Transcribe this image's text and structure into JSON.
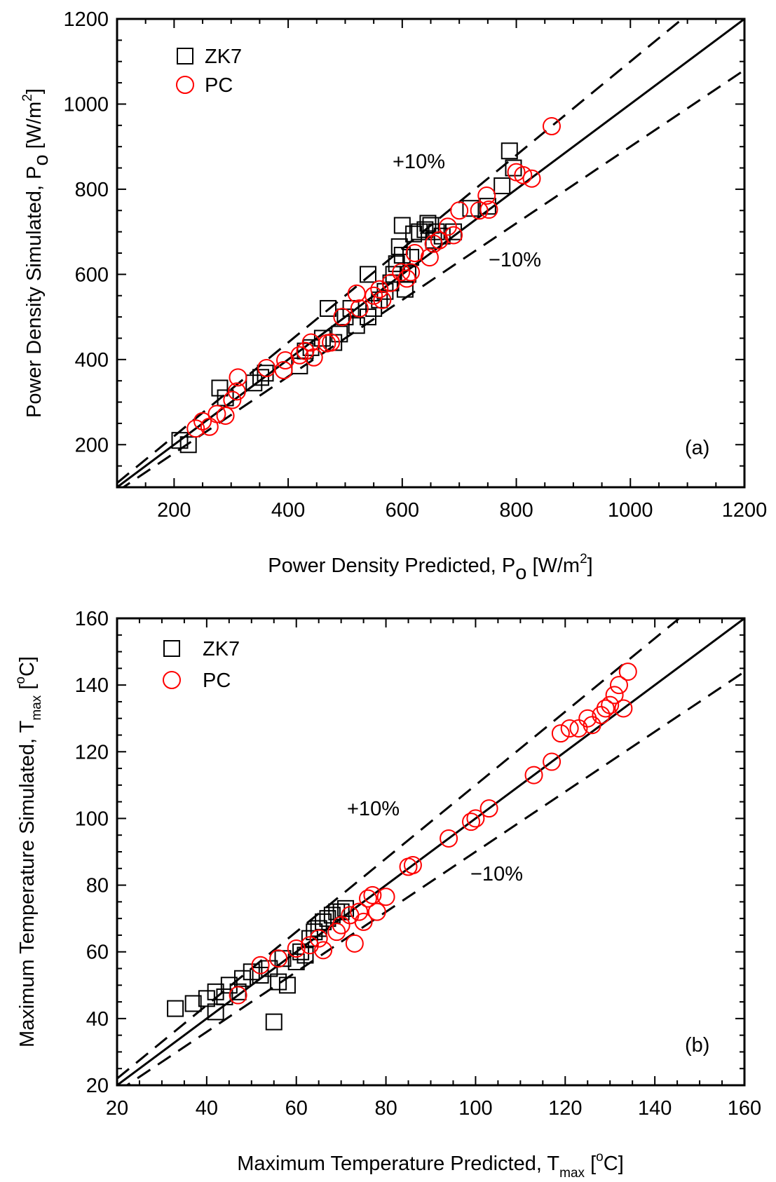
{
  "colors": {
    "zk7": "#000000",
    "pc": "#ff0000",
    "lines": "#000000"
  },
  "chart_data": [
    {
      "type": "scatter",
      "panel_label": "(a)",
      "xlabel": {
        "main": "Power Density Predicted, P",
        "sub": "o",
        "unit_pre": " [W/m",
        "sup": "2",
        "unit_post": "]"
      },
      "ylabel": {
        "main": "Power Density Simulated, P",
        "sub": "o",
        "unit_pre": " [W/m",
        "sup": "2",
        "unit_post": "]"
      },
      "xlim": [
        100,
        1200
      ],
      "ylim": [
        100,
        1200
      ],
      "xticks": [
        200,
        400,
        600,
        800,
        1000,
        1200
      ],
      "yticks": [
        200,
        400,
        600,
        800,
        1000,
        1200
      ],
      "minor_step": 50,
      "grid": false,
      "legend_position": "top-left",
      "annotations": {
        "plus": "+10%",
        "minus": "−10%"
      },
      "reference_lines": [
        {
          "name": "1:1",
          "slope": 1.0,
          "style": "solid"
        },
        {
          "name": "+10%",
          "slope": 1.1,
          "style": "dashed"
        },
        {
          "name": "-10%",
          "slope": 0.9,
          "style": "dashed"
        }
      ],
      "series": [
        {
          "name": "ZK7",
          "marker": "square",
          "points": [
            [
              210,
              210
            ],
            [
              225,
              200
            ],
            [
              280,
              333
            ],
            [
              290,
              310
            ],
            [
              340,
              345
            ],
            [
              352,
              358
            ],
            [
              360,
              368
            ],
            [
              420,
              385
            ],
            [
              430,
              420
            ],
            [
              440,
              428
            ],
            [
              460,
              450
            ],
            [
              470,
              520
            ],
            [
              480,
              440
            ],
            [
              490,
              460
            ],
            [
              500,
              500
            ],
            [
              510,
              520
            ],
            [
              520,
              480
            ],
            [
              540,
              600
            ],
            [
              540,
              500
            ],
            [
              550,
              520
            ],
            [
              560,
              540
            ],
            [
              570,
              560
            ],
            [
              580,
              580
            ],
            [
              585,
              600
            ],
            [
              590,
              625
            ],
            [
              595,
              665
            ],
            [
              600,
              645
            ],
            [
              600,
              715
            ],
            [
              605,
              565
            ],
            [
              610,
              600
            ],
            [
              615,
              640
            ],
            [
              620,
              695
            ],
            [
              630,
              700
            ],
            [
              640,
              705
            ],
            [
              645,
              720
            ],
            [
              650,
              715
            ],
            [
              655,
              680
            ],
            [
              660,
              700
            ],
            [
              670,
              690
            ],
            [
              690,
              700
            ],
            [
              720,
              755
            ],
            [
              750,
              760
            ],
            [
              775,
              808
            ],
            [
              788,
              890
            ],
            [
              795,
              850
            ]
          ]
        },
        {
          "name": "PC",
          "marker": "circle",
          "points": [
            [
              238,
              238
            ],
            [
              250,
              255
            ],
            [
              262,
              242
            ],
            [
              275,
              272
            ],
            [
              290,
              268
            ],
            [
              302,
              305
            ],
            [
              310,
              325
            ],
            [
              312,
              358
            ],
            [
              362,
              380
            ],
            [
              392,
              375
            ],
            [
              395,
              398
            ],
            [
              420,
              410
            ],
            [
              430,
              420
            ],
            [
              440,
              440
            ],
            [
              445,
              405
            ],
            [
              468,
              438
            ],
            [
              475,
              440
            ],
            [
              495,
              500
            ],
            [
              520,
              555
            ],
            [
              525,
              520
            ],
            [
              550,
              550
            ],
            [
              560,
              565
            ],
            [
              565,
              540
            ],
            [
              580,
              580
            ],
            [
              598,
              605
            ],
            [
              608,
              590
            ],
            [
              615,
              605
            ],
            [
              622,
              650
            ],
            [
              648,
              640
            ],
            [
              655,
              672
            ],
            [
              665,
              680
            ],
            [
              680,
              712
            ],
            [
              690,
              692
            ],
            [
              700,
              750
            ],
            [
              735,
              750
            ],
            [
              748,
              785
            ],
            [
              752,
              752
            ],
            [
              800,
              840
            ],
            [
              812,
              833
            ],
            [
              827,
              825
            ],
            [
              862,
              948
            ]
          ]
        }
      ]
    },
    {
      "type": "scatter",
      "panel_label": "(b)",
      "xlabel": {
        "main": "Maximum Temperature Predicted, T",
        "sub": "max",
        "unit_pre": " [",
        "sup": "o",
        "unit_post": "C]"
      },
      "ylabel": {
        "main": "Maximum Temperature Simulated, T",
        "sub": "max",
        "unit_pre": " [",
        "sup": "o",
        "unit_post": "C]"
      },
      "xlim": [
        20,
        160
      ],
      "ylim": [
        20,
        160
      ],
      "xticks": [
        20,
        40,
        60,
        80,
        100,
        120,
        140,
        160
      ],
      "yticks": [
        20,
        40,
        60,
        80,
        100,
        120,
        140,
        160
      ],
      "minor_step": 5,
      "grid": false,
      "legend_position": "top-left",
      "annotations": {
        "plus": "+10%",
        "minus": "−10%"
      },
      "reference_lines": [
        {
          "name": "1:1",
          "slope": 1.0,
          "style": "solid"
        },
        {
          "name": "+10%",
          "slope": 1.1,
          "style": "dashed"
        },
        {
          "name": "-10%",
          "slope": 0.9,
          "style": "dashed"
        }
      ],
      "series": [
        {
          "name": "ZK7",
          "marker": "square",
          "points": [
            [
              33,
              43
            ],
            [
              37,
              44.5
            ],
            [
              40,
              46
            ],
            [
              42,
              48
            ],
            [
              42,
              42
            ],
            [
              44,
              46.5
            ],
            [
              45,
              50
            ],
            [
              47,
              48
            ],
            [
              48,
              52
            ],
            [
              50,
              54
            ],
            [
              52,
              53
            ],
            [
              54,
              55
            ],
            [
              55,
              39
            ],
            [
              56,
              51
            ],
            [
              57,
              58
            ],
            [
              58,
              50
            ],
            [
              60,
              57
            ],
            [
              61,
              60
            ],
            [
              62,
              59
            ],
            [
              63,
              64
            ],
            [
              64,
              66
            ],
            [
              65,
              67
            ],
            [
              66,
              69
            ],
            [
              67,
              70
            ],
            [
              68,
              71
            ],
            [
              69,
              72
            ],
            [
              70,
              72
            ],
            [
              71,
              73
            ]
          ]
        },
        {
          "name": "PC",
          "marker": "circle",
          "points": [
            [
              47,
              47
            ],
            [
              52,
              56
            ],
            [
              56,
              58
            ],
            [
              60,
              61
            ],
            [
              63,
              62
            ],
            [
              65,
              64
            ],
            [
              66,
              60.5
            ],
            [
              69,
              66
            ],
            [
              70,
              68
            ],
            [
              72,
              71
            ],
            [
              73,
              62.5
            ],
            [
              74,
              72
            ],
            [
              75,
              69
            ],
            [
              76,
              76
            ],
            [
              77,
              77
            ],
            [
              78,
              72
            ],
            [
              80,
              76.5
            ],
            [
              85,
              85.5
            ],
            [
              86,
              86
            ],
            [
              94,
              94
            ],
            [
              99,
              99
            ],
            [
              100,
              100
            ],
            [
              103,
              103
            ],
            [
              113,
              113
            ],
            [
              117,
              117
            ],
            [
              119,
              125.5
            ],
            [
              121,
              127
            ],
            [
              123,
              127
            ],
            [
              125,
              130
            ],
            [
              126,
              128
            ],
            [
              128,
              131
            ],
            [
              129,
              133
            ],
            [
              130,
              134
            ],
            [
              131,
              137
            ],
            [
              132,
              140
            ],
            [
              133,
              133
            ],
            [
              134,
              144
            ]
          ]
        }
      ]
    }
  ]
}
